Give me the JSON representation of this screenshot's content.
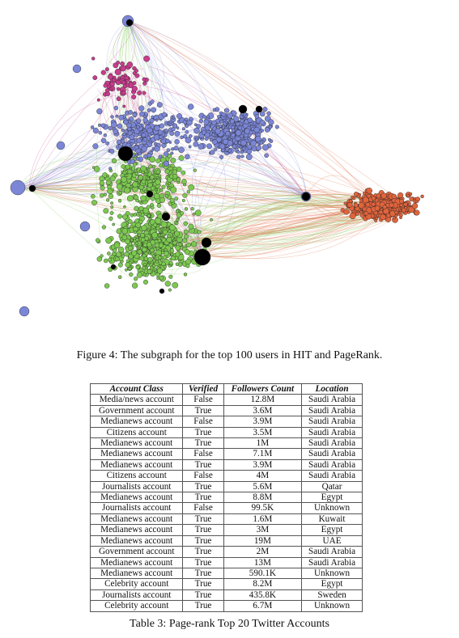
{
  "figure": {
    "caption": "Figure 4: The subgraph for the top 100 users in HIT and PageRank.",
    "colors": {
      "green": "#7cc850",
      "blue": "#7b86d6",
      "orange": "#e0643c",
      "magenta": "#c83c8c",
      "hub": "#000000"
    }
  },
  "table": {
    "caption": "Table 3: Page-rank Top 20 Twitter Accounts",
    "headers": [
      "Account Class",
      "Verified",
      "Followers Count",
      "Location"
    ],
    "rows": [
      [
        "Media/news account",
        "False",
        "12.8M",
        "Saudi Arabia"
      ],
      [
        "Government account",
        "True",
        "3.6M",
        "Saudi Arabia"
      ],
      [
        "Medianews account",
        "False",
        "3.9M",
        "Saudi Arabia"
      ],
      [
        "Citizens account",
        "True",
        "3.5M",
        "Saudi Arabia"
      ],
      [
        "Medianews account",
        "True",
        "1M",
        "Saudi Arabia"
      ],
      [
        "Medianews account",
        "False",
        "7.1M",
        "Saudi Arabia"
      ],
      [
        "Medianews account",
        "True",
        "3.9M",
        "Saudi Arabia"
      ],
      [
        "Citizens account",
        "False",
        "4M",
        "Saudi Arabia"
      ],
      [
        "Journalists account",
        "True",
        "5.6M",
        "Qatar"
      ],
      [
        "Medianews account",
        "True",
        "8.8M",
        "Egypt"
      ],
      [
        "Journalists account",
        "False",
        "99.5K",
        "Unknown"
      ],
      [
        "Medianews account",
        "True",
        "1.6M",
        "Kuwait"
      ],
      [
        "Medianews account",
        "True",
        "3M",
        "Egypt"
      ],
      [
        "Medianews account",
        "True",
        "19M",
        "UAE"
      ],
      [
        "Government account",
        "True",
        "2M",
        "Saudi Arabia"
      ],
      [
        "Medianews account",
        "True",
        "13M",
        "Saudi Arabia"
      ],
      [
        "Medianews account",
        "True",
        "590.1K",
        "Unknown"
      ],
      [
        "Celebrity account",
        "True",
        "8.2M",
        "Egypt"
      ],
      [
        "Journalists account",
        "True",
        "435.8K",
        "Sweden"
      ],
      [
        "Celebrity account",
        "True",
        "6.7M",
        "Unknown"
      ]
    ]
  }
}
